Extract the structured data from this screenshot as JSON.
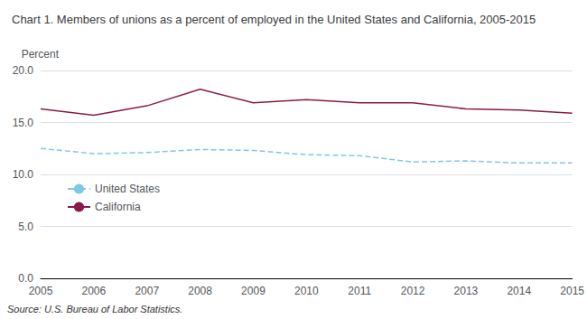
{
  "chart_data": {
    "type": "line",
    "title": "Chart 1. Members of unions as a percent of employed in the United States and California, 2005-2015",
    "ylabel": "Percent",
    "annotations": [
      "Source: U.S. Bureau of Labor Statistics."
    ],
    "x": [
      2005,
      2006,
      2007,
      2008,
      2009,
      2010,
      2011,
      2012,
      2013,
      2014,
      2015
    ],
    "series": [
      {
        "name": "United States",
        "color": "#7ec8e3",
        "line_style": "dashed",
        "values": [
          12.5,
          12.0,
          12.1,
          12.4,
          12.3,
          11.9,
          11.8,
          11.2,
          11.3,
          11.1,
          11.1
        ]
      },
      {
        "name": "California",
        "color": "#8b1a4a",
        "line_style": "solid",
        "values": [
          16.3,
          15.7,
          16.6,
          18.2,
          16.9,
          17.2,
          16.9,
          16.9,
          16.3,
          16.2,
          15.9
        ]
      }
    ],
    "xlim": [
      2005,
      2015
    ],
    "xticks": [
      2005,
      2006,
      2007,
      2008,
      2009,
      2010,
      2011,
      2012,
      2013,
      2014,
      2015
    ],
    "ylim": [
      0,
      20
    ],
    "yticks": [
      {
        "value": 0,
        "label": "0.0"
      },
      {
        "value": 5,
        "label": "5.0"
      },
      {
        "value": 10,
        "label": "10.0"
      },
      {
        "value": 15,
        "label": "15.0"
      },
      {
        "value": 20,
        "label": "20.0"
      }
    ],
    "grid": true,
    "legend": "lower left"
  }
}
